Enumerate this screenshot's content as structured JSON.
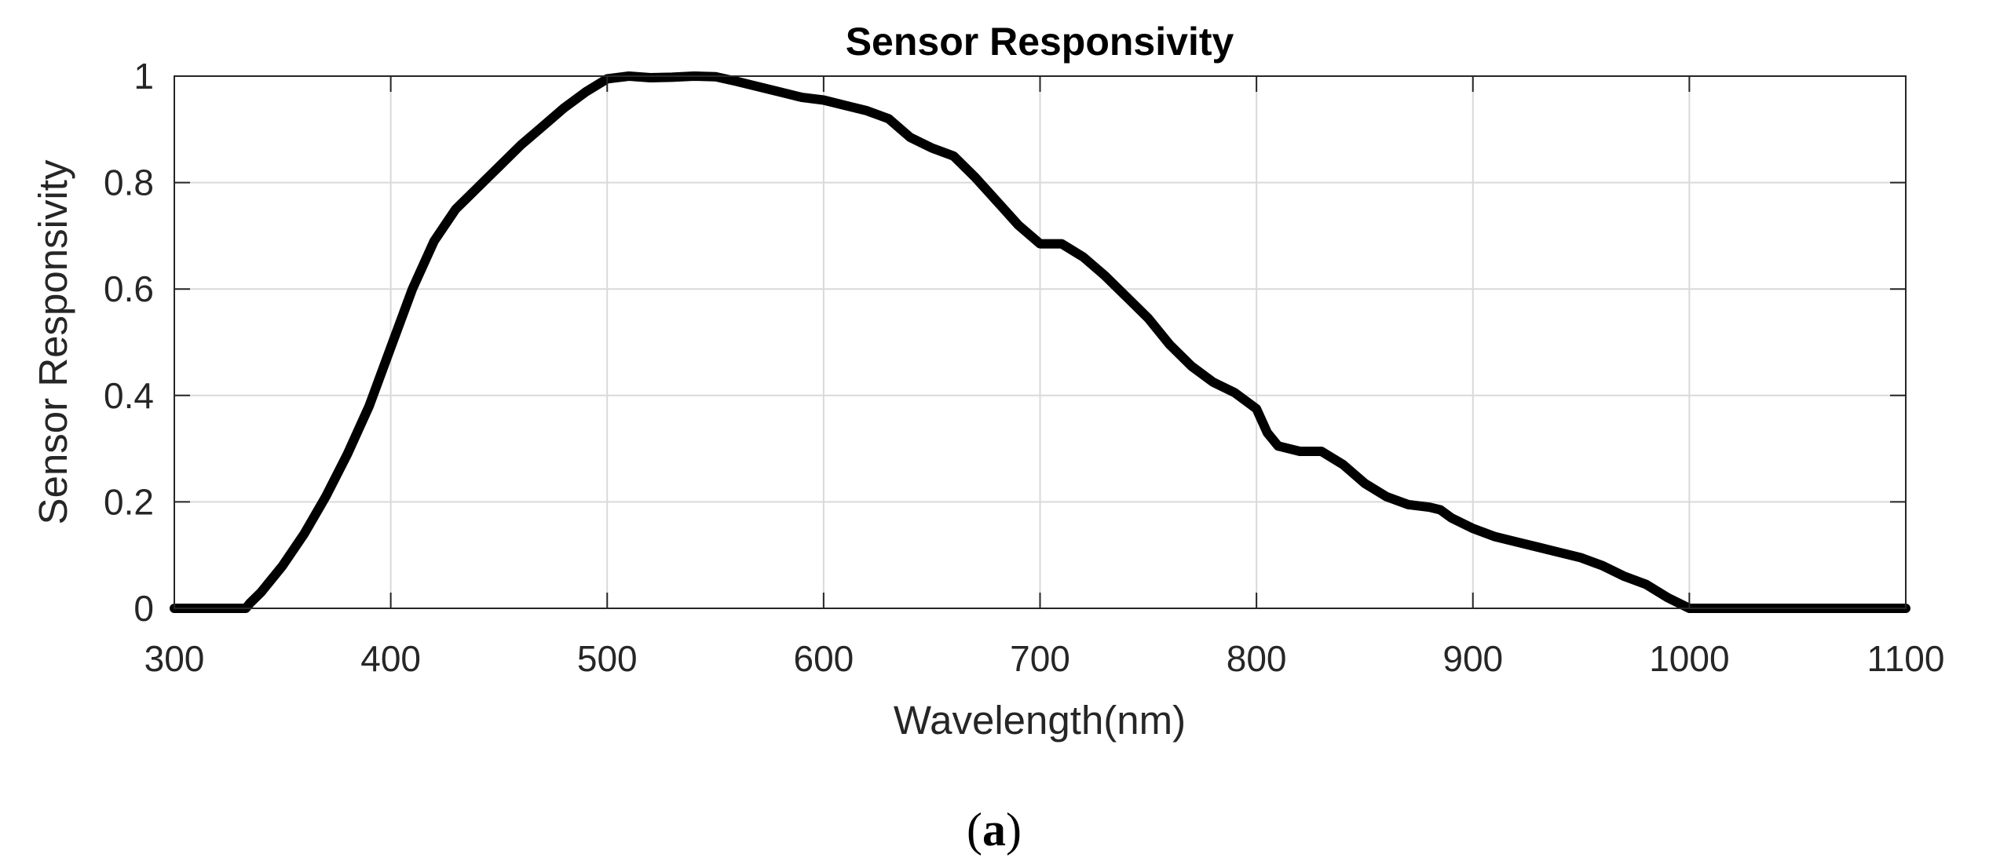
{
  "chart_data": {
    "type": "line",
    "title": "Sensor Responsivity",
    "xlabel": "Wavelength(nm)",
    "ylabel": "Sensor Responsivity",
    "xlim": [
      300,
      1100
    ],
    "ylim": [
      0,
      1
    ],
    "grid": true,
    "xticks": [
      300,
      400,
      500,
      600,
      700,
      800,
      900,
      1000,
      1100
    ],
    "yticks": [
      0,
      0.2,
      0.4,
      0.6,
      0.8,
      1
    ],
    "xtick_labels": [
      "300",
      "400",
      "500",
      "600",
      "700",
      "800",
      "900",
      "1000",
      "1100"
    ],
    "ytick_labels": [
      "0",
      "0.2",
      "0.4",
      "0.6",
      "0.8",
      "1"
    ],
    "series": [
      {
        "name": "Sensor Responsivity",
        "color": "#000000",
        "x": [
          300,
          310,
          320,
          333,
          335,
          340,
          350,
          360,
          370,
          380,
          390,
          400,
          410,
          420,
          430,
          440,
          450,
          460,
          470,
          480,
          490,
          500,
          510,
          520,
          530,
          540,
          550,
          560,
          570,
          580,
          590,
          600,
          610,
          620,
          630,
          640,
          650,
          660,
          670,
          680,
          690,
          700,
          710,
          720,
          730,
          740,
          750,
          760,
          770,
          780,
          790,
          800,
          805,
          810,
          820,
          830,
          840,
          850,
          860,
          870,
          880,
          885,
          890,
          900,
          910,
          920,
          930,
          940,
          950,
          960,
          970,
          980,
          990,
          1000,
          1010,
          1050,
          1100
        ],
        "y": [
          0,
          0,
          0,
          0,
          0.01,
          0.03,
          0.08,
          0.14,
          0.21,
          0.29,
          0.38,
          0.49,
          0.6,
          0.69,
          0.75,
          0.79,
          0.83,
          0.87,
          0.905,
          0.94,
          0.97,
          0.995,
          1.0,
          0.997,
          0.998,
          1.0,
          0.999,
          0.99,
          0.98,
          0.97,
          0.96,
          0.955,
          0.945,
          0.935,
          0.92,
          0.885,
          0.865,
          0.85,
          0.81,
          0.765,
          0.72,
          0.685,
          0.685,
          0.66,
          0.625,
          0.585,
          0.545,
          0.495,
          0.455,
          0.425,
          0.405,
          0.375,
          0.33,
          0.305,
          0.295,
          0.295,
          0.27,
          0.235,
          0.21,
          0.195,
          0.19,
          0.185,
          0.17,
          0.15,
          0.135,
          0.125,
          0.115,
          0.105,
          0.095,
          0.08,
          0.06,
          0.045,
          0.02,
          0.0,
          0,
          0,
          0
        ]
      }
    ]
  },
  "caption": {
    "open": "(",
    "letter": "a",
    "close": ")"
  }
}
